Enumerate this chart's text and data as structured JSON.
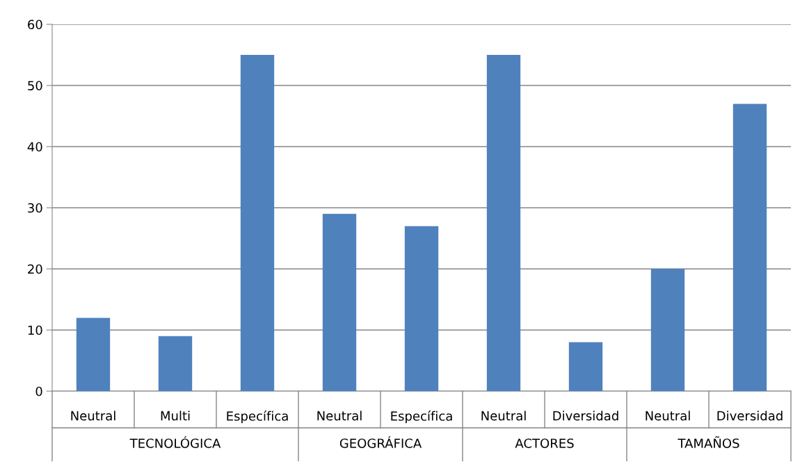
{
  "chart_data": {
    "type": "bar",
    "categories": [
      "Neutral",
      "Multi",
      "Específica",
      "Neutral",
      "Específica",
      "Neutral",
      "Diversidad",
      "Neutral",
      "Diversidad"
    ],
    "values": [
      12,
      9,
      55,
      29,
      27,
      55,
      8,
      20,
      47
    ],
    "color": "#4f81bd",
    "ylim": [
      0,
      60
    ],
    "yticks": [
      0,
      10,
      20,
      30,
      40,
      50,
      60
    ],
    "grid": "y",
    "annotations": [
      "TECNOLÓGICA",
      "GEOGRÁFICA",
      "ACTORES",
      "TAMAÑOS"
    ]
  }
}
